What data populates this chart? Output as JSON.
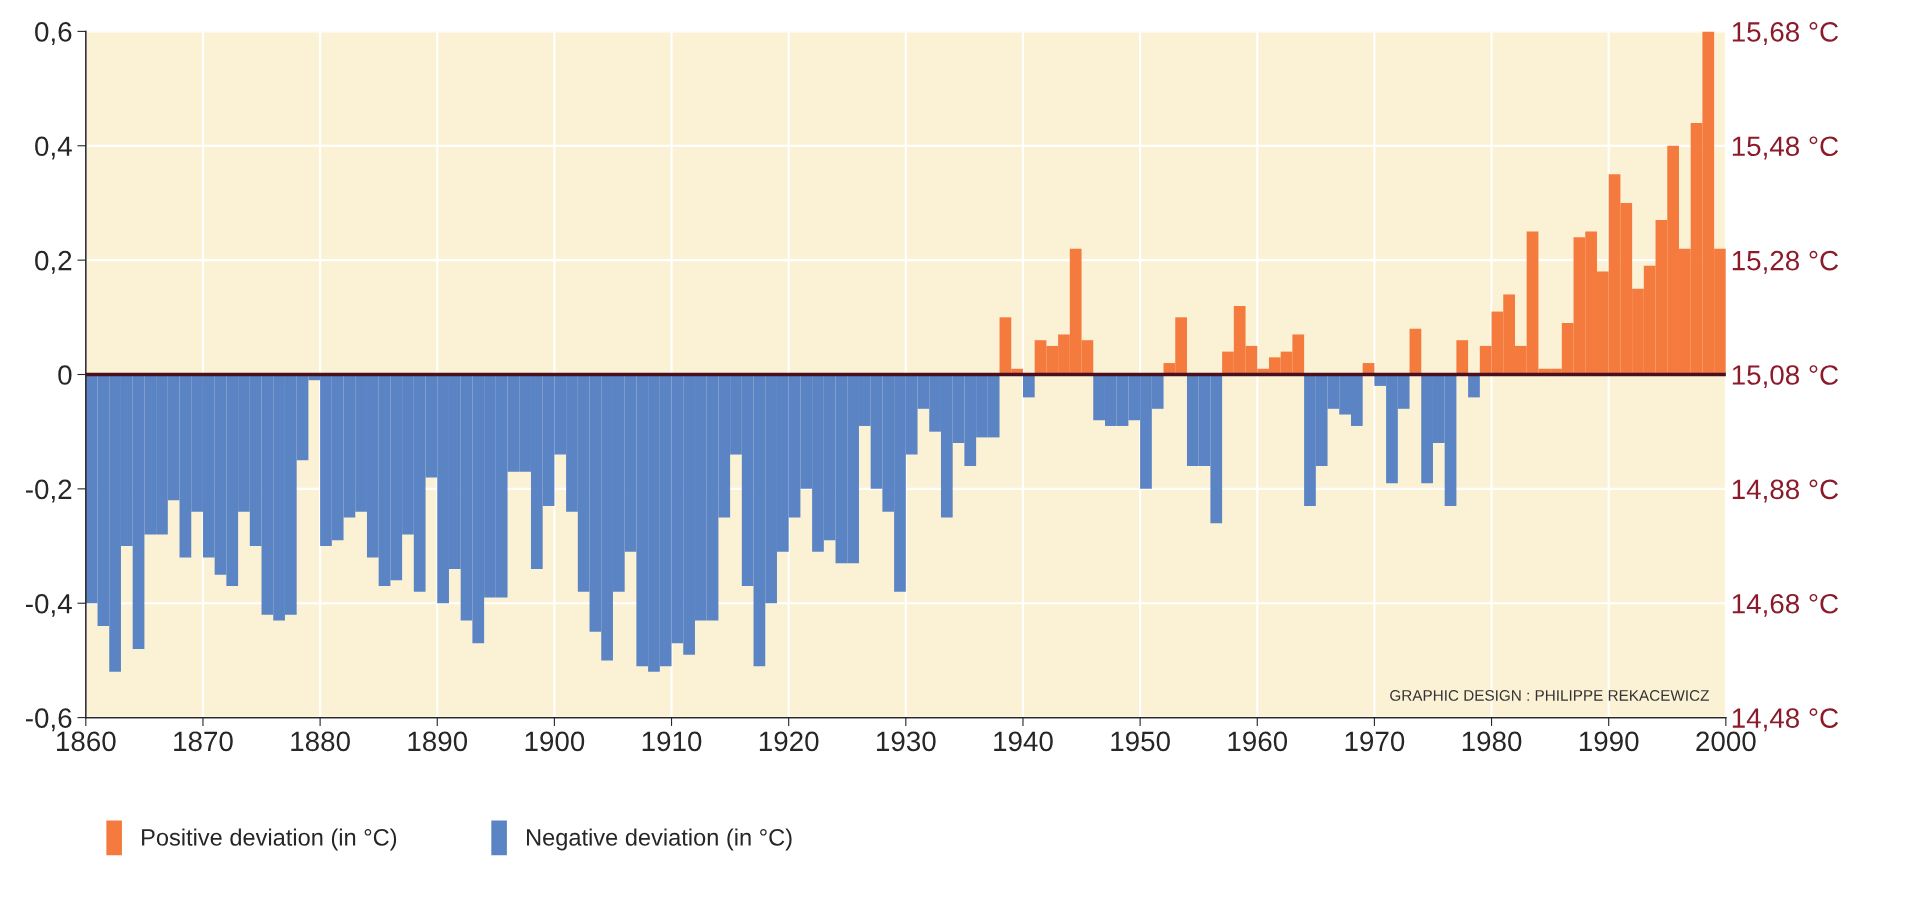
{
  "chart_data": {
    "type": "bar",
    "x": [
      1860,
      1861,
      1862,
      1863,
      1864,
      1865,
      1866,
      1867,
      1868,
      1869,
      1870,
      1871,
      1872,
      1873,
      1874,
      1875,
      1876,
      1877,
      1878,
      1879,
      1880,
      1881,
      1882,
      1883,
      1884,
      1885,
      1886,
      1887,
      1888,
      1889,
      1890,
      1891,
      1892,
      1893,
      1894,
      1895,
      1896,
      1897,
      1898,
      1899,
      1900,
      1901,
      1902,
      1903,
      1904,
      1905,
      1906,
      1907,
      1908,
      1909,
      1910,
      1911,
      1912,
      1913,
      1914,
      1915,
      1916,
      1917,
      1918,
      1919,
      1920,
      1921,
      1922,
      1923,
      1924,
      1925,
      1926,
      1927,
      1928,
      1929,
      1930,
      1931,
      1932,
      1933,
      1934,
      1935,
      1936,
      1937,
      1938,
      1939,
      1940,
      1941,
      1942,
      1943,
      1944,
      1945,
      1946,
      1947,
      1948,
      1949,
      1950,
      1951,
      1952,
      1953,
      1954,
      1955,
      1956,
      1957,
      1958,
      1959,
      1960,
      1961,
      1962,
      1963,
      1964,
      1965,
      1966,
      1967,
      1968,
      1969,
      1970,
      1971,
      1972,
      1973,
      1974,
      1975,
      1976,
      1977,
      1978,
      1979,
      1980,
      1981,
      1982,
      1983,
      1984,
      1985,
      1986,
      1987,
      1988,
      1989,
      1990,
      1991,
      1992,
      1993,
      1994,
      1995,
      1996,
      1997,
      1998,
      1999
    ],
    "series": [
      {
        "name": "Positive deviation (in °C)",
        "color": "#f47a3e",
        "values": [
          null,
          null,
          null,
          null,
          null,
          null,
          null,
          null,
          null,
          null,
          null,
          null,
          null,
          null,
          null,
          null,
          null,
          null,
          null,
          null,
          null,
          null,
          null,
          null,
          null,
          null,
          null,
          null,
          null,
          null,
          null,
          null,
          null,
          null,
          null,
          null,
          null,
          null,
          null,
          null,
          null,
          null,
          null,
          null,
          null,
          null,
          null,
          null,
          null,
          null,
          null,
          null,
          null,
          null,
          null,
          null,
          null,
          null,
          null,
          null,
          null,
          null,
          null,
          null,
          null,
          null,
          null,
          null,
          null,
          null,
          null,
          null,
          null,
          null,
          null,
          null,
          null,
          null,
          0.1,
          0.01,
          null,
          0.06,
          0.05,
          0.07,
          0.22,
          0.06,
          null,
          null,
          null,
          null,
          null,
          null,
          0.02,
          0.1,
          null,
          null,
          null,
          0.04,
          0.12,
          0.05,
          0.01,
          0.03,
          0.04,
          0.07,
          null,
          null,
          null,
          null,
          null,
          0.02,
          null,
          null,
          null,
          0.08,
          null,
          null,
          null,
          0.06,
          null,
          0.05,
          0.11,
          0.14,
          0.05,
          0.25,
          0.01,
          0.01,
          0.09,
          0.24,
          0.25,
          0.18,
          0.35,
          0.3,
          0.15,
          0.19,
          0.27,
          0.4,
          0.22,
          0.44,
          0.6,
          0.22
        ]
      },
      {
        "name": "Negative deviation (in °C)",
        "color": "#5b84c4",
        "values": [
          -0.4,
          -0.44,
          -0.52,
          -0.3,
          -0.48,
          -0.28,
          -0.28,
          -0.22,
          -0.32,
          -0.24,
          -0.32,
          -0.35,
          -0.37,
          -0.24,
          -0.3,
          -0.42,
          -0.43,
          -0.42,
          -0.15,
          -0.01,
          -0.3,
          -0.29,
          -0.25,
          -0.24,
          -0.32,
          -0.37,
          -0.36,
          -0.28,
          -0.38,
          -0.18,
          -0.4,
          -0.34,
          -0.43,
          -0.47,
          -0.39,
          -0.39,
          -0.17,
          -0.17,
          -0.34,
          -0.23,
          -0.14,
          -0.24,
          -0.38,
          -0.45,
          -0.5,
          -0.38,
          -0.31,
          -0.51,
          -0.52,
          -0.51,
          -0.47,
          -0.49,
          -0.43,
          -0.43,
          -0.25,
          -0.14,
          -0.37,
          -0.51,
          -0.4,
          -0.31,
          -0.25,
          -0.2,
          -0.31,
          -0.29,
          -0.33,
          -0.33,
          -0.09,
          -0.2,
          -0.24,
          -0.38,
          -0.14,
          -0.06,
          -0.1,
          -0.25,
          -0.12,
          -0.16,
          -0.11,
          -0.11,
          null,
          null,
          -0.04,
          null,
          null,
          null,
          null,
          null,
          -0.08,
          -0.09,
          -0.09,
          -0.08,
          -0.2,
          -0.06,
          null,
          null,
          -0.16,
          -0.16,
          -0.26,
          null,
          null,
          null,
          null,
          null,
          null,
          null,
          -0.23,
          -0.16,
          -0.06,
          -0.07,
          -0.09,
          null,
          -0.02,
          -0.19,
          -0.06,
          null,
          -0.19,
          -0.12,
          -0.23,
          null,
          -0.04,
          null,
          null,
          null,
          null,
          null,
          null,
          null,
          null,
          null,
          null,
          null,
          null,
          null,
          null,
          null,
          null,
          null,
          null,
          null,
          null,
          null
        ]
      }
    ],
    "xlim": [
      1860,
      2000
    ],
    "xticks": [
      1860,
      1870,
      1880,
      1890,
      1900,
      1910,
      1920,
      1930,
      1940,
      1950,
      1960,
      1970,
      1980,
      1990,
      2000
    ],
    "ylim": [
      -0.6,
      0.6
    ],
    "yticks": [
      {
        "value": -0.6,
        "label": "-0,6"
      },
      {
        "value": -0.4,
        "label": "-0,4"
      },
      {
        "value": -0.2,
        "label": "-0,2"
      },
      0,
      {
        "value": 0.2,
        "label": "0,2"
      },
      {
        "value": 0.4,
        "label": "0,4"
      },
      {
        "value": 0.6,
        "label": "0,6"
      }
    ],
    "y2lim": [
      14.48,
      15.68
    ],
    "y2ticks": [
      {
        "value": 14.48,
        "label": "14,48 °C"
      },
      {
        "value": 14.68,
        "label": "14,68 °C"
      },
      {
        "value": 14.88,
        "label": "14,88 °C"
      },
      {
        "value": 15.08,
        "label": "15,08 °C"
      },
      {
        "value": 15.28,
        "label": "15,28 °C"
      },
      {
        "value": 15.48,
        "label": "15,48 °C"
      },
      {
        "value": 15.68,
        "label": "15,68 °C"
      }
    ],
    "ref_lines": [
      {
        "axis": "y",
        "value": 0,
        "color": "#4a1020"
      }
    ],
    "grid": true,
    "legend": "bottom left",
    "annotations": [
      "GRAPHIC DESIGN : PHILIPPE REKACEWICZ"
    ]
  }
}
